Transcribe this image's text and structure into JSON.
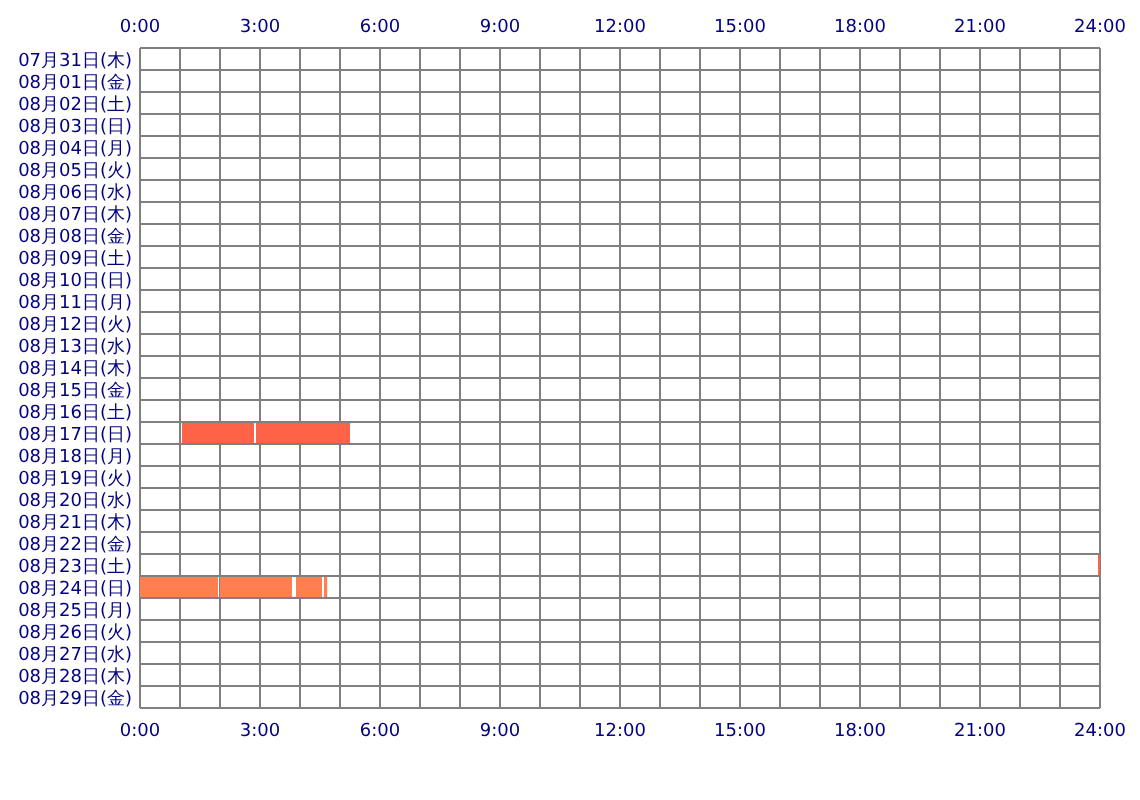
{
  "chart_data": {
    "type": "bar",
    "orientation": "horizontal",
    "grid": true,
    "categories": [
      "07月31日(木)",
      "08月01日(金)",
      "08月02日(土)",
      "08月03日(日)",
      "08月04日(月)",
      "08月05日(火)",
      "08月06日(水)",
      "08月07日(木)",
      "08月08日(金)",
      "08月09日(土)",
      "08月10日(日)",
      "08月11日(月)",
      "08月12日(火)",
      "08月13日(水)",
      "08月14日(木)",
      "08月15日(金)",
      "08月16日(土)",
      "08月17日(日)",
      "08月18日(月)",
      "08月19日(火)",
      "08月20日(水)",
      "08月21日(木)",
      "08月22日(金)",
      "08月23日(土)",
      "08月24日(日)",
      "08月25日(月)",
      "08月26日(火)",
      "08月27日(水)",
      "08月28日(木)",
      "08月29日(金)"
    ],
    "series": [
      {
        "color": "#ff6347",
        "colors": [
          null,
          null,
          null,
          null,
          null,
          null,
          null,
          null,
          null,
          null,
          null,
          null,
          null,
          null,
          null,
          null,
          null,
          null,
          null,
          null,
          null,
          null,
          null,
          null,
          "#ff7f50",
          null,
          null,
          null,
          null,
          null
        ],
        "base": [
          null,
          null,
          null,
          null,
          null,
          null,
          null,
          null,
          null,
          null,
          null,
          null,
          null,
          null,
          null,
          null,
          null,
          1.05,
          null,
          null,
          null,
          null,
          null,
          23.95,
          0,
          null,
          null,
          null,
          null,
          null
        ],
        "values": [
          null,
          null,
          null,
          null,
          null,
          null,
          null,
          null,
          null,
          null,
          null,
          null,
          null,
          null,
          null,
          null,
          null,
          1.8,
          null,
          null,
          null,
          null,
          null,
          0.05,
          1.95,
          null,
          null,
          null,
          null,
          null
        ]
      },
      {
        "color": "#ff6347",
        "colors": [
          null,
          null,
          null,
          null,
          null,
          null,
          null,
          null,
          null,
          null,
          null,
          null,
          null,
          null,
          null,
          null,
          null,
          null,
          null,
          null,
          null,
          null,
          null,
          null,
          "#ff7f50",
          null,
          null,
          null,
          null,
          null
        ],
        "base": [
          null,
          null,
          null,
          null,
          null,
          null,
          null,
          null,
          null,
          null,
          null,
          null,
          null,
          null,
          null,
          null,
          null,
          2.9,
          null,
          null,
          null,
          null,
          null,
          null,
          2.0,
          null,
          null,
          null,
          null,
          null
        ],
        "values": [
          null,
          null,
          null,
          null,
          null,
          null,
          null,
          null,
          null,
          null,
          null,
          null,
          null,
          null,
          null,
          null,
          null,
          2.35,
          null,
          null,
          null,
          null,
          null,
          null,
          1.8,
          null,
          null,
          null,
          null,
          null
        ]
      },
      {
        "color": "#ff7f50",
        "base": [
          null,
          null,
          null,
          null,
          null,
          null,
          null,
          null,
          null,
          null,
          null,
          null,
          null,
          null,
          null,
          null,
          null,
          null,
          null,
          null,
          null,
          null,
          null,
          null,
          3.9,
          null,
          null,
          null,
          null,
          null
        ],
        "values": [
          null,
          null,
          null,
          null,
          null,
          null,
          null,
          null,
          null,
          null,
          null,
          null,
          null,
          null,
          null,
          null,
          null,
          null,
          null,
          null,
          null,
          null,
          null,
          null,
          0.65,
          null,
          null,
          null,
          null,
          null
        ]
      },
      {
        "color": "#ff7f50",
        "base": [
          null,
          null,
          null,
          null,
          null,
          null,
          null,
          null,
          null,
          null,
          null,
          null,
          null,
          null,
          null,
          null,
          null,
          null,
          null,
          null,
          null,
          null,
          null,
          null,
          4.6,
          null,
          null,
          null,
          null,
          null
        ],
        "values": [
          null,
          null,
          null,
          null,
          null,
          null,
          null,
          null,
          null,
          null,
          null,
          null,
          null,
          null,
          null,
          null,
          null,
          null,
          null,
          null,
          null,
          null,
          null,
          null,
          0.08,
          null,
          null,
          null,
          null,
          null
        ]
      }
    ],
    "xlim": [
      0,
      24
    ],
    "xticks": [
      {
        "value": 0,
        "label": "0:00"
      },
      {
        "value": 3,
        "label": "3:00"
      },
      {
        "value": 6,
        "label": "6:00"
      },
      {
        "value": 9,
        "label": "9:00"
      },
      {
        "value": 12,
        "label": "12:00"
      },
      {
        "value": 15,
        "label": "15:00"
      },
      {
        "value": 18,
        "label": "18:00"
      },
      {
        "value": 21,
        "label": "21:00"
      },
      {
        "value": 24,
        "label": "24:00"
      }
    ],
    "x2lim": [
      0,
      24
    ],
    "x2ticks": [
      {
        "value": 0,
        "label": "0:00"
      },
      {
        "value": 3,
        "label": "3:00"
      },
      {
        "value": 6,
        "label": "6:00"
      },
      {
        "value": 9,
        "label": "9:00"
      },
      {
        "value": 12,
        "label": "12:00"
      },
      {
        "value": 15,
        "label": "15:00"
      },
      {
        "value": 18,
        "label": "18:00"
      },
      {
        "value": 21,
        "label": "21:00"
      },
      {
        "value": 24,
        "label": "24:00"
      }
    ]
  }
}
